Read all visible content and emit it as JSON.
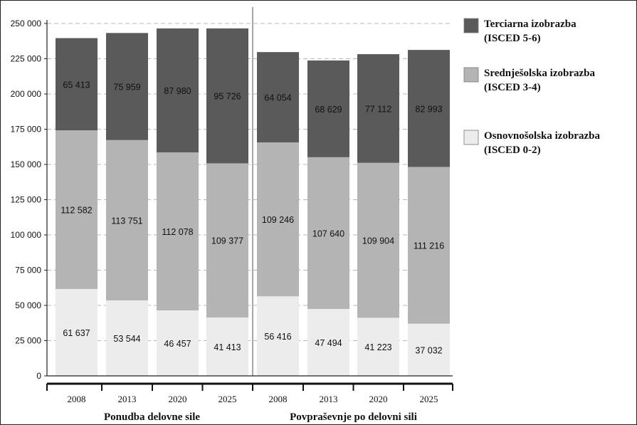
{
  "chart_data": {
    "type": "bar",
    "stacked": true,
    "title": "",
    "xlabel": "",
    "ylabel": "",
    "ylim": [
      0,
      250000
    ],
    "yticks": [
      "0",
      "25 000",
      "50 000",
      "75 000",
      "100 000",
      "125 000",
      "150 000",
      "175 000",
      "200 000",
      "225 000",
      "250 000"
    ],
    "grid": true,
    "legend_position": "right",
    "groups": [
      {
        "label": "Ponudba delovne sile",
        "categories": [
          "2008",
          "2013",
          "2020",
          "2025"
        ]
      },
      {
        "label": "Povpraševnje po delovni sili",
        "categories": [
          "2008",
          "2013",
          "2020",
          "2025"
        ]
      }
    ],
    "categories": [
      "2008",
      "2013",
      "2020",
      "2025",
      "2008",
      "2013",
      "2020",
      "2025"
    ],
    "series": [
      {
        "name": "Osnovnošolska izobrazba (ISCED 0-2)",
        "legend_lines": [
          "Osnovnošolska izobrazba",
          "(ISCED 0-2)"
        ],
        "color": "#ececec",
        "values": [
          61637,
          53544,
          46457,
          41413,
          56416,
          47494,
          41223,
          37032
        ],
        "labels": [
          "61 637",
          "53 544",
          "46 457",
          "41 413",
          "56 416",
          "47 494",
          "41 223",
          "37 032"
        ]
      },
      {
        "name": "Srednješolska izobrazba (ISCED 3-4)",
        "legend_lines": [
          "Srednješolska izobrazba",
          "(ISCED 3-4)"
        ],
        "color": "#b4b4b4",
        "values": [
          112582,
          113751,
          112078,
          109377,
          109246,
          107640,
          109904,
          111216
        ],
        "labels": [
          "112 582",
          "113 751",
          "112 078",
          "109 377",
          "109 246",
          "107 640",
          "109 904",
          "111 216"
        ]
      },
      {
        "name": "Terciarna izobrazba (ISCED 5-6)",
        "legend_lines": [
          "Terciarna izobrazba",
          " (ISCED 5-6)"
        ],
        "color": "#5a5a5a",
        "values": [
          65413,
          75959,
          87980,
          95726,
          64054,
          68629,
          77112,
          82993
        ],
        "labels": [
          "65 413",
          "75 959",
          "87 980",
          "95 726",
          "64 054",
          "68 629",
          "77 112",
          "82 993"
        ]
      }
    ]
  }
}
